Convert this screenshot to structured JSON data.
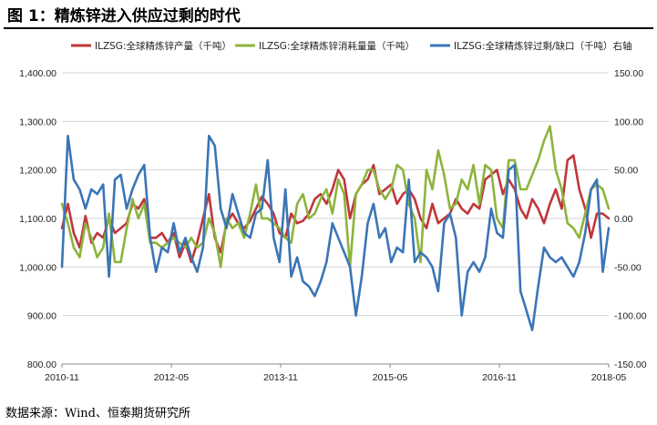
{
  "title": "图 1：精炼锌进入供应过剩的时代",
  "source": "数据来源：Wind、恒泰期货研究所",
  "chart_data": {
    "type": "line",
    "x_labels": [
      "2010-11",
      "2012-05",
      "2013-11",
      "2015-05",
      "2016-11",
      "2018-05"
    ],
    "x_start": "2010-11",
    "x_end": "2018-05",
    "ylim_left": [
      800,
      1400
    ],
    "ylim_right": [
      -150,
      150
    ],
    "yticks_left": [
      "800.00",
      "900.00",
      "1,000.00",
      "1,100.00",
      "1,200.00",
      "1,300.00",
      "1,400.00"
    ],
    "yticks_right": [
      "-150.00",
      "-100.00",
      "-50.00",
      "0.00",
      "50.00",
      "100.00",
      "150.00"
    ],
    "grid": "horizontal",
    "legend_position": "top",
    "series": [
      {
        "name": "ILZSG:全球精炼锌产量（千吨）",
        "color": "#C0363A",
        "axis": "left",
        "values": [
          1080,
          1130,
          1070,
          1040,
          1105,
          1050,
          1070,
          1060,
          1100,
          1070,
          1080,
          1090,
          1130,
          1120,
          1140,
          1060,
          1060,
          1070,
          1050,
          1070,
          1020,
          1050,
          1010,
          1050,
          1100,
          1150,
          1060,
          1030,
          1090,
          1110,
          1090,
          1080,
          1095,
          1120,
          1145,
          1130,
          1110,
          1070,
          1060,
          1110,
          1090,
          1095,
          1110,
          1140,
          1150,
          1130,
          1160,
          1200,
          1180,
          1100,
          1150,
          1170,
          1180,
          1210,
          1150,
          1160,
          1170,
          1130,
          1150,
          1160,
          1140,
          1100,
          1080,
          1130,
          1090,
          1100,
          1110,
          1140,
          1120,
          1110,
          1130,
          1120,
          1180,
          1190,
          1200,
          1150,
          1180,
          1160,
          1120,
          1100,
          1140,
          1120,
          1090,
          1130,
          1160,
          1120,
          1220,
          1230,
          1160,
          1120,
          1060,
          1110,
          1110,
          1100
        ]
      },
      {
        "name": "ILZSG:全球精炼锌消耗量量（千吨）",
        "color": "#8DB43D",
        "axis": "left",
        "values": [
          1130,
          1090,
          1040,
          1020,
          1090,
          1060,
          1020,
          1040,
          1110,
          1010,
          1010,
          1080,
          1140,
          1100,
          1130,
          1050,
          1050,
          1040,
          1050,
          1060,
          1050,
          1040,
          1060,
          1040,
          1050,
          1100,
          1070,
          1000,
          1100,
          1080,
          1090,
          1060,
          1110,
          1170,
          1100,
          1100,
          1090,
          1080,
          1060,
          1050,
          1130,
          1150,
          1100,
          1110,
          1140,
          1160,
          1110,
          1180,
          1150,
          1000,
          1150,
          1170,
          1200,
          1200,
          1160,
          1140,
          1160,
          1210,
          1200,
          1130,
          1100,
          1010,
          1200,
          1160,
          1240,
          1190,
          1120,
          1130,
          1180,
          1160,
          1210,
          1130,
          1210,
          1200,
          1100,
          1080,
          1220,
          1220,
          1160,
          1160,
          1190,
          1220,
          1260,
          1290,
          1200,
          1160,
          1090,
          1080,
          1060,
          1110,
          1160,
          1170,
          1160,
          1120
        ]
      },
      {
        "name": "ILZSG:全球精炼锌过剩/缺口（千吨）右轴",
        "color": "#3B75B6",
        "axis": "right",
        "values": [
          -50,
          85,
          40,
          30,
          10,
          30,
          25,
          35,
          -60,
          40,
          45,
          10,
          30,
          45,
          55,
          -20,
          -55,
          -30,
          -35,
          -5,
          -35,
          -20,
          -40,
          -55,
          -30,
          85,
          75,
          10,
          -10,
          25,
          5,
          -15,
          -20,
          5,
          10,
          60,
          -20,
          -45,
          30,
          -60,
          -40,
          -65,
          -70,
          -80,
          -65,
          -45,
          -5,
          -20,
          -35,
          -50,
          -100,
          -60,
          -5,
          15,
          -20,
          -10,
          -45,
          -30,
          -35,
          40,
          -45,
          -35,
          -40,
          -50,
          -75,
          -5,
          5,
          -20,
          -100,
          -55,
          -45,
          -55,
          -40,
          10,
          -15,
          -20,
          50,
          55,
          -75,
          -95,
          -115,
          -70,
          -30,
          -40,
          -45,
          -40,
          -50,
          -60,
          -45,
          -15,
          30,
          40,
          -55,
          -10
        ]
      }
    ]
  }
}
